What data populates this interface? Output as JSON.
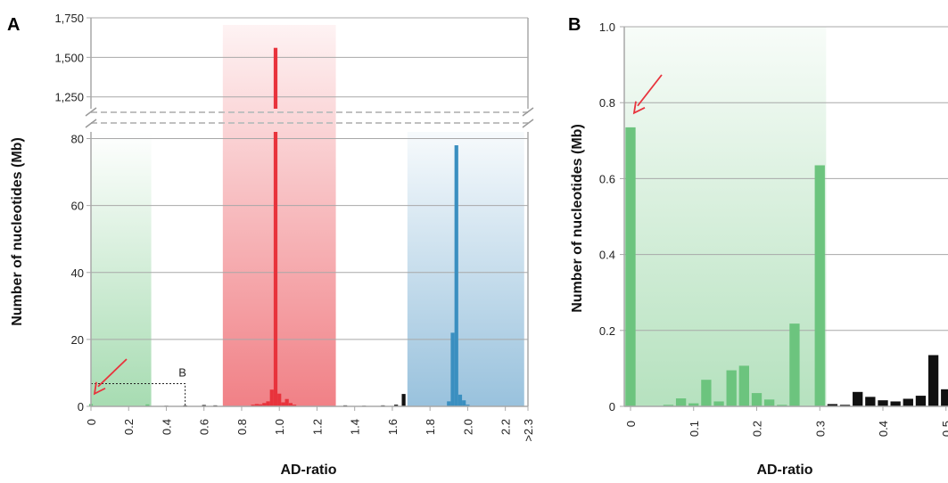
{
  "chart_data": [
    {
      "panel": "A",
      "type": "bar",
      "xlabel": "AD-ratio",
      "ylabel": "Number of nucleotides (Mb)",
      "x_tick_labels": [
        "0",
        "0.2",
        "0.4",
        "0.6",
        "0.8",
        "1.0",
        "1.2",
        "1.4",
        "1.6",
        "1.8",
        "2.0",
        "2.2",
        ">2.3"
      ],
      "y_tick_labels_lower": [
        "0",
        "20",
        "40",
        "60",
        "80"
      ],
      "y_tick_labels_upper": [
        "1,250",
        "1,500",
        "1,750"
      ],
      "ylim_lower": [
        0,
        82
      ],
      "ylim_upper": [
        1175,
        1750
      ],
      "axis_break": true,
      "grid": true,
      "shaded_regions": [
        {
          "from": 0,
          "to": 0.32,
          "color": "#6cc47e"
        },
        {
          "from": 0.7,
          "to": 1.3,
          "color": "#e8333c"
        },
        {
          "from": 1.68,
          "to": 2.3,
          "color": "#5a9cc8"
        }
      ],
      "inset_box": {
        "label": "B",
        "x_max": 0.5,
        "y_max": 6.8
      },
      "arrow_target": {
        "x": 0.0,
        "y": 0.6
      },
      "series": [
        {
          "color": "#6cc47e",
          "bins": [
            {
              "x": 0.0,
              "y": 0.7
            },
            {
              "x": 0.01,
              "y": 0.1
            },
            {
              "x": 0.3,
              "y": 0.6
            }
          ]
        },
        {
          "color": "#e8333c",
          "bins": [
            {
              "x": 0.86,
              "y": 0.5
            },
            {
              "x": 0.88,
              "y": 0.7
            },
            {
              "x": 0.9,
              "y": 0.6
            },
            {
              "x": 0.92,
              "y": 1.0
            },
            {
              "x": 0.94,
              "y": 1.5
            },
            {
              "x": 0.96,
              "y": 5.0
            },
            {
              "x": 0.98,
              "y": 1560
            },
            {
              "x": 1.0,
              "y": 3.8
            },
            {
              "x": 1.02,
              "y": 1.2
            },
            {
              "x": 1.04,
              "y": 2.2
            },
            {
              "x": 1.06,
              "y": 1.0
            },
            {
              "x": 1.08,
              "y": 0.5
            }
          ]
        },
        {
          "color": "#3a8fc0",
          "bins": [
            {
              "x": 1.9,
              "y": 1.5
            },
            {
              "x": 1.92,
              "y": 22
            },
            {
              "x": 1.94,
              "y": 78
            },
            {
              "x": 1.96,
              "y": 3.5
            },
            {
              "x": 1.98,
              "y": 1.8
            },
            {
              "x": 2.0,
              "y": 0.5
            }
          ]
        },
        {
          "color": "#111111",
          "bins": [
            {
              "x": 0.34,
              "y": 0.1
            },
            {
              "x": 0.4,
              "y": 0.2
            },
            {
              "x": 0.5,
              "y": 0.3
            },
            {
              "x": 0.6,
              "y": 0.4
            },
            {
              "x": 0.66,
              "y": 0.3
            },
            {
              "x": 1.35,
              "y": 0.3
            },
            {
              "x": 1.45,
              "y": 0.2
            },
            {
              "x": 1.55,
              "y": 0.3
            },
            {
              "x": 1.62,
              "y": 0.5
            },
            {
              "x": 1.66,
              "y": 3.7
            }
          ]
        }
      ]
    },
    {
      "panel": "B",
      "type": "bar",
      "xlabel": "AD-ratio",
      "ylabel": "Number of nucleotides (Mb)",
      "x_tick_labels": [
        "0",
        "0.1",
        "0.2",
        "0.3",
        "0.4",
        "0.5"
      ],
      "y_tick_labels": [
        "0",
        "0.2",
        "0.4",
        "0.6",
        "0.8",
        "1.0"
      ],
      "ylim": [
        0,
        1.0
      ],
      "grid": true,
      "shaded_regions": [
        {
          "from": -0.01,
          "to": 0.31,
          "color": "#6cc47e"
        }
      ],
      "arrow_target": {
        "x": 0.0,
        "y": 0.74
      },
      "series": [
        {
          "color": "#6cc47e",
          "bins": [
            {
              "x": 0.0,
              "y": 0.735
            },
            {
              "x": 0.06,
              "y": 0.004
            },
            {
              "x": 0.08,
              "y": 0.021
            },
            {
              "x": 0.1,
              "y": 0.008
            },
            {
              "x": 0.12,
              "y": 0.07
            },
            {
              "x": 0.14,
              "y": 0.013
            },
            {
              "x": 0.16,
              "y": 0.095
            },
            {
              "x": 0.18,
              "y": 0.107
            },
            {
              "x": 0.2,
              "y": 0.035
            },
            {
              "x": 0.22,
              "y": 0.018
            },
            {
              "x": 0.24,
              "y": 0.004
            },
            {
              "x": 0.26,
              "y": 0.218
            },
            {
              "x": 0.3,
              "y": 0.635
            }
          ]
        },
        {
          "color": "#111111",
          "bins": [
            {
              "x": 0.32,
              "y": 0.006
            },
            {
              "x": 0.34,
              "y": 0.004
            },
            {
              "x": 0.36,
              "y": 0.038
            },
            {
              "x": 0.38,
              "y": 0.025
            },
            {
              "x": 0.4,
              "y": 0.016
            },
            {
              "x": 0.42,
              "y": 0.013
            },
            {
              "x": 0.44,
              "y": 0.02
            },
            {
              "x": 0.46,
              "y": 0.028
            },
            {
              "x": 0.48,
              "y": 0.135
            },
            {
              "x": 0.5,
              "y": 0.045
            }
          ]
        }
      ]
    }
  ]
}
